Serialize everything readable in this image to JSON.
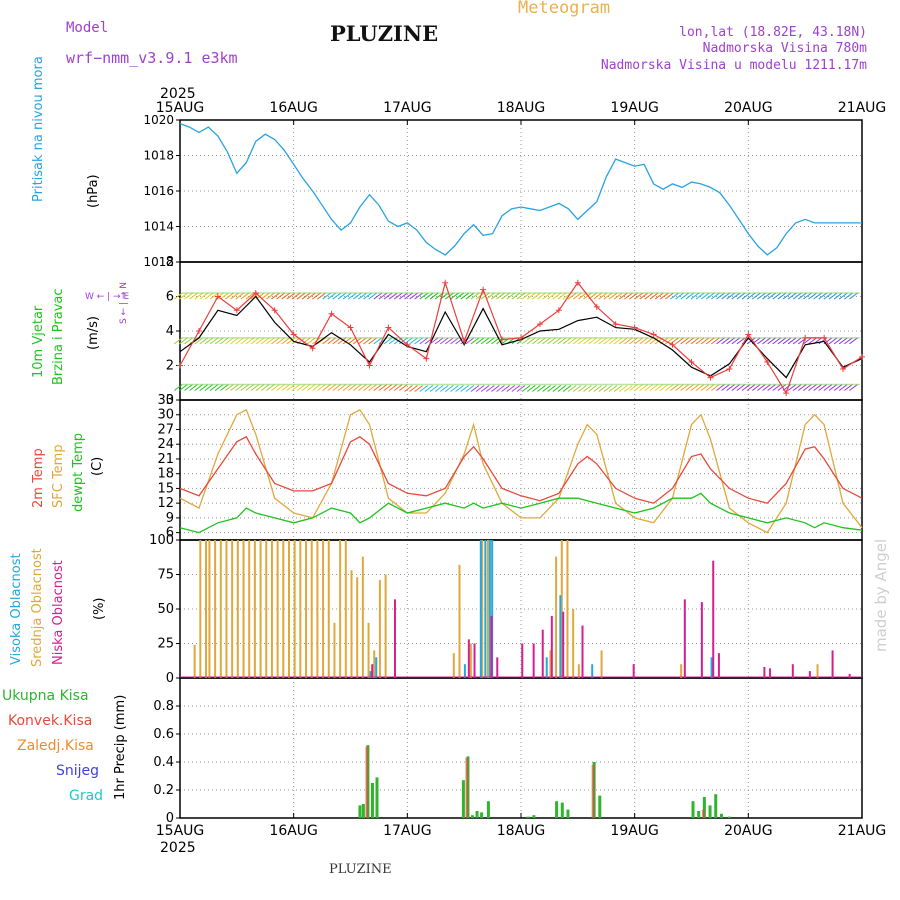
{
  "header": {
    "model_label": "Model",
    "model_name": "wrf−nmm_v3.9.1  e3km",
    "city": "PLUZINE",
    "chart_type": "Meteogram",
    "coords": "lon,lat (18.82E, 43.18N)",
    "altitude": "Nadmorska Visina 780m",
    "model_altitude": "Nadmorska Visina u modelu 1211.17m",
    "footer_city": "PLUZINE",
    "credit": "made by Angel"
  },
  "colors": {
    "pressure": "#29a3e0",
    "wind_speed": "#000000",
    "gust": "#f03c3c",
    "temp": "#e84a3a",
    "sfc_temp": "#e0a83c",
    "dewpt": "#1fc21f",
    "high_cloud": "#22a8e0",
    "mid_cloud": "#e0a83c",
    "low_cloud": "#d61f8f",
    "total_precip": "#2db52d",
    "conv_precip": "#e84a3a",
    "frozen": "#f08c2a",
    "snow": "#4040e0",
    "graupel": "#22c8c8"
  },
  "chart_data": [
    {
      "type": "line",
      "name": "pressure",
      "ylabel": "Pritisak na nivou mora",
      "yunit": "(hPa)",
      "ylim": [
        1012,
        1020
      ],
      "yticks": [
        1012,
        1014,
        1016,
        1018,
        1020
      ],
      "x_days": [
        0,
        0.083,
        0.167,
        0.25,
        0.333,
        0.417,
        0.5,
        0.583,
        0.667,
        0.75,
        0.833,
        0.917,
        1.0,
        1.083,
        1.167,
        1.25,
        1.333,
        1.417,
        1.5,
        1.583,
        1.667,
        1.75,
        1.833,
        1.917,
        2.0,
        2.083,
        2.167,
        2.25,
        2.333,
        2.417,
        2.5,
        2.583,
        2.667,
        2.75,
        2.833,
        2.917,
        3.0,
        3.083,
        3.167,
        3.25,
        3.333,
        3.417,
        3.5,
        3.583,
        3.667,
        3.75,
        3.833,
        3.917,
        4.0,
        4.083,
        4.167,
        4.25,
        4.333,
        4.417,
        4.5,
        4.583,
        4.667,
        4.75,
        4.833,
        4.917,
        5.0,
        5.083,
        5.167,
        5.25,
        5.333,
        5.417,
        5.5,
        5.583,
        5.667,
        5.75,
        5.833,
        5.917,
        6.0
      ],
      "values": [
        1019.8,
        1019.6,
        1019.3,
        1019.6,
        1019.1,
        1018.2,
        1017.0,
        1017.6,
        1018.8,
        1019.2,
        1018.9,
        1018.3,
        1017.5,
        1016.7,
        1016.0,
        1015.2,
        1014.4,
        1013.8,
        1014.2,
        1015.1,
        1015.8,
        1015.2,
        1014.3,
        1014.0,
        1014.2,
        1013.8,
        1013.1,
        1012.7,
        1012.4,
        1012.9,
        1013.6,
        1014.1,
        1013.5,
        1013.6,
        1014.6,
        1015.0,
        1015.1,
        1015.0,
        1014.9,
        1015.1,
        1015.3,
        1015.0,
        1014.4,
        1014.9,
        1015.4,
        1016.8,
        1017.8,
        1017.6,
        1017.4,
        1017.5,
        1016.4,
        1016.1,
        1016.4,
        1016.2,
        1016.5,
        1016.4,
        1016.2,
        1015.9,
        1015.2,
        1014.4,
        1013.6,
        1012.9,
        1012.4,
        1012.8,
        1013.6,
        1014.2,
        1014.4,
        1014.2,
        1014.2,
        1014.2,
        1014.2,
        1014.2,
        1014.2
      ]
    },
    {
      "type": "line",
      "name": "wind",
      "ylabel_1": "10m Vjetar",
      "ylabel_2": "Brzina i Pravac",
      "yunit": "(m/s)",
      "compass": "W ← | → E",
      "compass_2": "S ← | → N",
      "ylim": [
        0,
        8
      ],
      "yticks": [
        0,
        2,
        4,
        6,
        8
      ],
      "x_days": [
        0,
        0.167,
        0.333,
        0.5,
        0.667,
        0.833,
        1.0,
        1.167,
        1.333,
        1.5,
        1.667,
        1.833,
        2.0,
        2.167,
        2.333,
        2.5,
        2.667,
        2.833,
        3.0,
        3.167,
        3.333,
        3.5,
        3.667,
        3.833,
        4.0,
        4.167,
        4.333,
        4.5,
        4.667,
        4.833,
        5.0,
        5.167,
        5.333,
        5.5,
        5.667,
        5.833,
        6.0
      ],
      "speed": [
        2.8,
        3.6,
        5.2,
        4.9,
        6.0,
        4.5,
        3.4,
        3.1,
        3.9,
        3.2,
        2.2,
        3.8,
        3.1,
        2.8,
        5.1,
        3.2,
        5.3,
        3.2,
        3.5,
        4.0,
        4.1,
        4.6,
        4.8,
        4.2,
        4.1,
        3.6,
        2.9,
        1.9,
        1.4,
        2.1,
        3.6,
        2.4,
        1.3,
        3.2,
        3.4,
        1.9,
        2.4
      ],
      "gust": [
        2.0,
        4.0,
        6.0,
        5.2,
        6.2,
        5.2,
        3.8,
        3.0,
        5.0,
        4.2,
        2.0,
        4.2,
        3.2,
        2.4,
        6.8,
        3.4,
        6.4,
        3.5,
        3.6,
        4.4,
        5.2,
        6.8,
        5.4,
        4.4,
        4.2,
        3.8,
        3.2,
        2.2,
        1.3,
        1.8,
        3.8,
        2.2,
        0.4,
        3.6,
        3.6,
        1.8,
        2.5
      ]
    },
    {
      "type": "line",
      "name": "temperature",
      "ylabel_1": "2m Temp",
      "ylabel_2": "SFC Temp",
      "ylabel_3": "dewpt Temp",
      "yunit": "(C)",
      "ylim": [
        4.5,
        33
      ],
      "yticks": [
        6,
        9,
        12,
        15,
        18,
        21,
        24,
        27,
        30,
        33
      ],
      "x_days": [
        0,
        0.167,
        0.333,
        0.5,
        0.583,
        0.667,
        0.833,
        1.0,
        1.167,
        1.333,
        1.5,
        1.583,
        1.667,
        1.833,
        2.0,
        2.167,
        2.333,
        2.5,
        2.583,
        2.667,
        2.833,
        3.0,
        3.167,
        3.333,
        3.5,
        3.583,
        3.667,
        3.833,
        4.0,
        4.167,
        4.333,
        4.5,
        4.583,
        4.667,
        4.833,
        5.0,
        5.167,
        5.333,
        5.5,
        5.583,
        5.667,
        5.833,
        6.0
      ],
      "t2m": [
        15,
        13.5,
        19,
        24.5,
        25.5,
        22,
        16,
        14.5,
        14.5,
        16,
        24.5,
        25.5,
        24,
        16,
        14,
        13.5,
        15,
        21.5,
        23.5,
        21,
        15,
        13.5,
        12.5,
        14,
        20,
        21.5,
        20,
        15,
        13,
        12,
        15,
        21.5,
        22,
        19,
        15,
        13,
        12,
        16,
        23,
        23.5,
        21,
        15,
        13
      ],
      "sfc": [
        13,
        11,
        22,
        30,
        31,
        26,
        13,
        10,
        9,
        16,
        30,
        31,
        28,
        13,
        10,
        10,
        14,
        22,
        28,
        20,
        12,
        9,
        9,
        13,
        24,
        28,
        26,
        12,
        9,
        8,
        13,
        28,
        30,
        25,
        11,
        8,
        6,
        12,
        28,
        30,
        28,
        12,
        7
      ],
      "dewpt": [
        7,
        6,
        8,
        9,
        11,
        10,
        9,
        8,
        9,
        11,
        10,
        8,
        9,
        12,
        10,
        11,
        12,
        11,
        12,
        11,
        12,
        11,
        12,
        13,
        13,
        12.5,
        12,
        11,
        10,
        11,
        13,
        13,
        14,
        12,
        10,
        9,
        8,
        9,
        8,
        7,
        8,
        7,
        6.5
      ]
    },
    {
      "type": "bar",
      "name": "clouds",
      "ylabel_1": "Visoka Oblacnost",
      "ylabel_2": "Srednja Oblacnost",
      "ylabel_3": "Niska Oblacnost",
      "yunit": "(%)",
      "ylim": [
        0,
        100
      ],
      "yticks": [
        0,
        25,
        50,
        75,
        100
      ],
      "mid": [
        [
          0.12,
          24
        ],
        [
          0.17,
          100
        ],
        [
          0.22,
          100
        ],
        [
          0.25,
          100
        ],
        [
          0.3,
          100
        ],
        [
          0.35,
          100
        ],
        [
          0.4,
          100
        ],
        [
          0.45,
          100
        ],
        [
          0.5,
          100
        ],
        [
          0.55,
          100
        ],
        [
          0.6,
          100
        ],
        [
          0.65,
          100
        ],
        [
          0.7,
          100
        ],
        [
          0.75,
          100
        ],
        [
          0.8,
          100
        ],
        [
          0.85,
          100
        ],
        [
          0.9,
          100
        ],
        [
          0.95,
          100
        ],
        [
          1.0,
          100
        ],
        [
          1.05,
          100
        ],
        [
          1.1,
          100
        ],
        [
          1.15,
          100
        ],
        [
          1.2,
          100
        ],
        [
          1.25,
          100
        ],
        [
          1.3,
          100
        ],
        [
          1.35,
          40
        ],
        [
          1.4,
          100
        ],
        [
          1.45,
          100
        ],
        [
          1.5,
          78
        ],
        [
          1.55,
          73
        ],
        [
          1.6,
          88
        ],
        [
          1.65,
          40
        ],
        [
          1.7,
          20
        ],
        [
          1.75,
          71
        ],
        [
          1.8,
          75
        ],
        [
          2.4,
          18
        ],
        [
          2.45,
          82
        ],
        [
          2.55,
          25
        ],
        [
          2.65,
          100
        ],
        [
          2.7,
          100
        ],
        [
          3.25,
          20
        ],
        [
          3.3,
          88
        ],
        [
          3.35,
          100
        ],
        [
          3.4,
          100
        ],
        [
          3.45,
          50
        ],
        [
          3.5,
          10
        ],
        [
          3.7,
          20
        ],
        [
          4.4,
          10
        ],
        [
          5.6,
          10
        ]
      ],
      "high": [
        [
          1.65,
          5
        ],
        [
          1.7,
          15
        ],
        [
          2.48,
          10
        ],
        [
          2.62,
          100
        ],
        [
          2.66,
          100
        ],
        [
          2.7,
          100
        ],
        [
          2.72,
          100
        ],
        [
          3.32,
          60
        ],
        [
          3.2,
          15
        ],
        [
          3.6,
          10
        ],
        [
          4.65,
          15
        ]
      ],
      "low": [
        [
          1.7,
          10
        ],
        [
          1.9,
          57
        ],
        [
          2.55,
          28
        ],
        [
          2.6,
          25
        ],
        [
          2.75,
          45
        ],
        [
          2.8,
          15
        ],
        [
          3.02,
          25
        ],
        [
          3.12,
          25
        ],
        [
          3.2,
          35
        ],
        [
          3.28,
          45
        ],
        [
          3.38,
          48
        ],
        [
          3.55,
          38
        ],
        [
          4.0,
          10
        ],
        [
          4.45,
          57
        ],
        [
          4.6,
          55
        ],
        [
          4.7,
          85
        ],
        [
          4.75,
          18
        ],
        [
          5.15,
          8
        ],
        [
          5.2,
          7
        ],
        [
          5.4,
          10
        ],
        [
          5.55,
          5
        ],
        [
          5.75,
          20
        ],
        [
          5.9,
          3
        ]
      ]
    },
    {
      "type": "bar",
      "name": "precipitation",
      "ylabel": "1hr Precip (mm)",
      "legend": [
        "Ukupna Kisa",
        "Konvek.Kisa",
        "Zaledj.Kisa",
        "Snijeg",
        "Grad"
      ],
      "ylim": [
        0,
        1.0
      ],
      "yticks": [
        0,
        0.2,
        0.4,
        0.6,
        0.8
      ],
      "total": [
        [
          1.57,
          0.09
        ],
        [
          1.6,
          0.1
        ],
        [
          1.64,
          0.52
        ],
        [
          1.68,
          0.25
        ],
        [
          1.72,
          0.29
        ],
        [
          2.48,
          0.27
        ],
        [
          2.52,
          0.44
        ],
        [
          2.56,
          0.02
        ],
        [
          2.6,
          0.05
        ],
        [
          2.64,
          0.04
        ],
        [
          2.7,
          0.12
        ],
        [
          3.05,
          0.01
        ],
        [
          3.1,
          0.02
        ],
        [
          3.3,
          0.12
        ],
        [
          3.35,
          0.11
        ],
        [
          3.4,
          0.06
        ],
        [
          3.63,
          0.4
        ],
        [
          3.68,
          0.16
        ],
        [
          4.5,
          0.12
        ],
        [
          4.55,
          0.05
        ],
        [
          4.6,
          0.15
        ],
        [
          4.65,
          0.09
        ],
        [
          4.7,
          0.17
        ],
        [
          4.75,
          0.03
        ],
        [
          4.82,
          0.01
        ]
      ],
      "convective": [
        [
          1.64,
          0.51
        ],
        [
          2.52,
          0.43
        ],
        [
          3.63,
          0.38
        ],
        [
          4.6,
          0.06
        ]
      ]
    }
  ],
  "xaxis": {
    "year": "2025",
    "labels": [
      "15AUG",
      "16AUG",
      "17AUG",
      "18AUG",
      "19AUG",
      "20AUG",
      "21AUG"
    ]
  }
}
